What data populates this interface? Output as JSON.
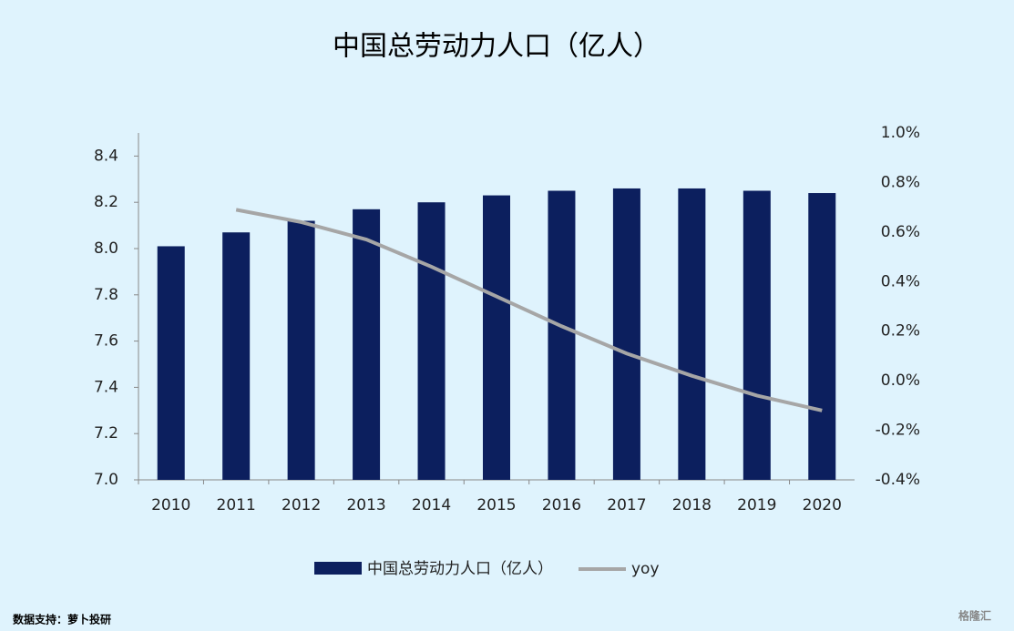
{
  "chart_data": {
    "type": "bar",
    "title": "中国总劳动力人口（亿人）",
    "categories": [
      "2010",
      "2011",
      "2012",
      "2013",
      "2014",
      "2015",
      "2016",
      "2017",
      "2018",
      "2019",
      "2020"
    ],
    "series": [
      {
        "name": "中国总劳动力人口（亿人）",
        "color": "#0c1f5e",
        "type": "bar",
        "values": [
          8.01,
          8.07,
          8.12,
          8.17,
          8.2,
          8.23,
          8.25,
          8.26,
          8.26,
          8.25,
          8.24
        ]
      },
      {
        "name": "yoy",
        "color": "#a6a6a6",
        "type": "line",
        "axis": "y2",
        "values": [
          null,
          0.69,
          0.64,
          0.57,
          0.46,
          0.34,
          0.22,
          0.11,
          0.02,
          -0.06,
          -0.12
        ]
      }
    ],
    "ylim": [
      7.0,
      8.5
    ],
    "yticks": [
      {
        "value": 7.0,
        "label": "7.0"
      },
      7.2,
      7.4,
      7.6,
      7.8,
      {
        "value": 8.0,
        "label": "8.0"
      },
      8.2,
      8.4
    ],
    "y2lim": [
      -0.4,
      1.0
    ],
    "y2ticks": [
      {
        "value": -0.4,
        "label": "-0.4%"
      },
      {
        "value": -0.2,
        "label": "-0.2%"
      },
      {
        "value": 0.0,
        "label": "0.0%"
      },
      {
        "value": 0.2,
        "label": "0.2%"
      },
      {
        "value": 0.4,
        "label": "0.4%"
      },
      {
        "value": 0.6,
        "label": "0.6%"
      },
      {
        "value": 0.8,
        "label": "0.8%"
      },
      {
        "value": 1.0,
        "label": "1.0%"
      }
    ],
    "legend": "bottom",
    "source": "数据支持：萝卜投研",
    "watermark": "格隆汇"
  }
}
